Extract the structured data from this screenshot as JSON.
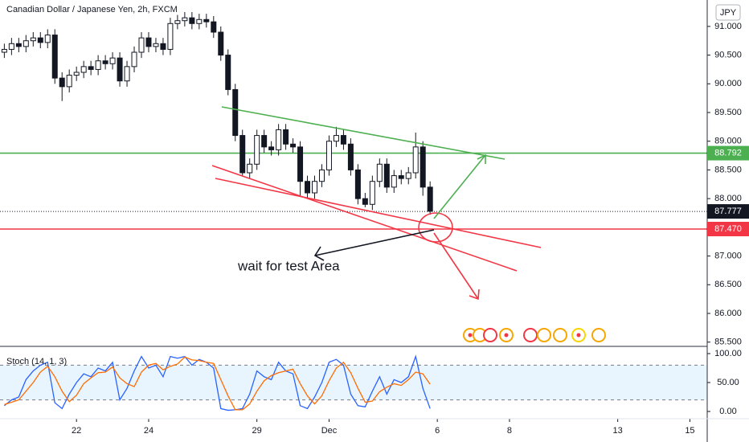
{
  "chart_data": [
    {
      "type": "candlestick",
      "title": "Canadian Dollar / Japanese Yen, 2h, FXCM",
      "currency": "JPY",
      "x": [
        -2.0,
        -1.8,
        -1.6,
        -1.4,
        -1.2,
        -1.0,
        -0.8,
        -0.6,
        -0.4,
        -0.2,
        0.0,
        0.2,
        0.4,
        0.6,
        0.8,
        1.0,
        1.2,
        1.4,
        1.6,
        1.8,
        2.0,
        2.2,
        2.4,
        2.6,
        2.8,
        3.0,
        3.2,
        3.4,
        3.6,
        3.8,
        4.0,
        4.2,
        4.4,
        4.6,
        4.8,
        5.0,
        5.2,
        5.4,
        5.6,
        5.8,
        6.0,
        6.2,
        6.4,
        6.6,
        6.8,
        7.0,
        7.2,
        7.4,
        7.6,
        7.8,
        8.0,
        8.2,
        8.4,
        8.6,
        8.8,
        9.0,
        9.2,
        9.4,
        9.6,
        9.8
      ],
      "open": [
        90.55,
        90.6,
        90.7,
        90.65,
        90.75,
        90.8,
        90.72,
        90.85,
        90.1,
        89.95,
        90.15,
        90.2,
        90.3,
        90.25,
        90.4,
        90.35,
        90.45,
        90.05,
        90.3,
        90.55,
        90.8,
        90.65,
        90.7,
        90.6,
        91.05,
        91.1,
        91.15,
        91.05,
        91.12,
        91.08,
        90.9,
        90.5,
        89.9,
        89.1,
        88.45,
        88.6,
        89.1,
        88.9,
        88.85,
        89.2,
        88.95,
        88.9,
        88.3,
        88.1,
        88.3,
        88.5,
        89.0,
        89.1,
        88.95,
        88.5,
        88.0,
        87.9,
        88.3,
        88.6,
        88.2,
        88.4,
        88.35,
        88.45,
        88.9,
        88.2
      ],
      "high": [
        90.7,
        90.8,
        90.8,
        90.85,
        90.9,
        90.9,
        90.95,
        90.95,
        90.2,
        90.25,
        90.3,
        90.4,
        90.4,
        90.5,
        90.5,
        90.55,
        90.55,
        90.4,
        90.65,
        90.9,
        90.9,
        90.8,
        90.8,
        91.15,
        91.2,
        91.25,
        91.25,
        91.22,
        91.22,
        91.18,
        91.0,
        90.6,
        90.0,
        89.2,
        88.7,
        89.2,
        89.2,
        89.0,
        89.3,
        89.3,
        89.05,
        89.0,
        88.4,
        88.4,
        88.6,
        89.1,
        89.25,
        89.2,
        89.05,
        88.6,
        88.1,
        88.4,
        88.7,
        88.7,
        88.5,
        88.5,
        88.55,
        89.15,
        89.0,
        88.3
      ],
      "low": [
        90.45,
        90.5,
        90.55,
        90.55,
        90.65,
        90.62,
        90.62,
        90.0,
        89.7,
        89.85,
        90.05,
        90.1,
        90.15,
        90.15,
        90.25,
        90.25,
        89.95,
        89.95,
        90.2,
        90.45,
        90.55,
        90.55,
        90.5,
        90.5,
        90.95,
        91.0,
        90.95,
        90.95,
        90.98,
        90.8,
        90.4,
        89.8,
        89.0,
        88.4,
        88.35,
        88.5,
        88.8,
        88.75,
        88.75,
        88.85,
        88.8,
        88.05,
        88.0,
        88.0,
        88.2,
        88.4,
        88.9,
        88.85,
        88.4,
        87.9,
        87.85,
        87.8,
        88.2,
        88.1,
        88.1,
        88.25,
        88.25,
        88.35,
        88.05,
        87.72
      ],
      "close": [
        90.6,
        90.7,
        90.65,
        90.75,
        90.8,
        90.72,
        90.85,
        90.1,
        89.95,
        90.15,
        90.2,
        90.3,
        90.25,
        90.4,
        90.35,
        90.45,
        90.05,
        90.3,
        90.55,
        90.8,
        90.65,
        90.7,
        90.6,
        91.05,
        91.1,
        91.15,
        91.05,
        91.12,
        91.08,
        90.9,
        90.5,
        89.9,
        89.1,
        88.45,
        88.6,
        89.1,
        88.9,
        88.85,
        89.2,
        88.95,
        88.9,
        88.3,
        88.1,
        88.3,
        88.5,
        89.0,
        89.1,
        88.95,
        88.5,
        88.0,
        87.9,
        88.3,
        88.6,
        88.2,
        88.4,
        88.35,
        88.45,
        88.9,
        88.2,
        87.78
      ],
      "up_color": "#ffffff",
      "down_color": "#131722",
      "xlim": [
        -2.12,
        17.48
      ],
      "xticks": [
        {
          "value": 0,
          "label": "22"
        },
        {
          "value": 2,
          "label": "24"
        },
        {
          "value": 5,
          "label": "29"
        },
        {
          "value": 7,
          "label": "Dec"
        },
        {
          "value": 10,
          "label": "6"
        },
        {
          "value": 12,
          "label": "8"
        },
        {
          "value": 15,
          "label": "13"
        },
        {
          "value": 17,
          "label": "15"
        }
      ],
      "ylim": [
        85.44,
        91.46
      ],
      "yticks": [
        {
          "value": 91,
          "label": "91.000"
        },
        {
          "value": 90.5,
          "label": "90.500"
        },
        {
          "value": 90,
          "label": "90.000"
        },
        {
          "value": 89.5,
          "label": "89.500"
        },
        {
          "value": 89,
          "label": "89.000"
        },
        {
          "value": 88.5,
          "label": "88.500"
        },
        {
          "value": 88,
          "label": "88.000"
        },
        {
          "value": 87.5,
          "label": "87.500"
        },
        {
          "value": 87,
          "label": "87.000"
        },
        {
          "value": 86.5,
          "label": "86.500"
        },
        {
          "value": 86,
          "label": "86.000"
        },
        {
          "value": 85.5,
          "label": "85.500"
        }
      ],
      "levels": {
        "values": [
          88.792,
          87.777,
          87.47
        ],
        "value_labels": [
          "88.792",
          "87.777",
          "87.470"
        ],
        "colors": [
          "#4caf50",
          "#131722",
          "#f23645"
        ],
        "styles": [
          "solid",
          "dotted",
          "solid"
        ]
      },
      "annotation": "wait for test Area"
    },
    {
      "type": "line",
      "title": "Stoch (14, 1, 3)",
      "x": [
        -2.0,
        -1.8,
        -1.6,
        -1.4,
        -1.2,
        -1.0,
        -0.8,
        -0.6,
        -0.4,
        -0.2,
        0.0,
        0.2,
        0.4,
        0.6,
        0.8,
        1.0,
        1.2,
        1.4,
        1.6,
        1.8,
        2.0,
        2.2,
        2.4,
        2.6,
        2.8,
        3.0,
        3.2,
        3.4,
        3.6,
        3.8,
        4.0,
        4.2,
        4.4,
        4.6,
        4.8,
        5.0,
        5.2,
        5.4,
        5.6,
        5.8,
        6.0,
        6.2,
        6.4,
        6.6,
        6.8,
        7.0,
        7.2,
        7.4,
        7.6,
        7.8,
        8.0,
        8.2,
        8.4,
        8.6,
        8.8,
        9.0,
        9.2,
        9.4,
        9.6,
        9.8
      ],
      "series": [
        {
          "color": "#2962ff",
          "values": [
            10,
            20,
            25,
            55,
            70,
            80,
            85,
            15,
            5,
            30,
            50,
            65,
            60,
            75,
            70,
            85,
            20,
            40,
            70,
            95,
            75,
            80,
            60,
            95,
            92,
            95,
            80,
            90,
            85,
            75,
            5,
            2,
            3,
            5,
            30,
            70,
            60,
            55,
            85,
            70,
            65,
            10,
            5,
            25,
            50,
            85,
            90,
            80,
            30,
            10,
            8,
            35,
            60,
            30,
            55,
            50,
            60,
            95,
            40,
            5
          ]
        },
        {
          "color": "#ff6d00",
          "values": [
            12,
            16,
            20,
            35,
            50,
            68,
            78,
            60,
            35,
            17,
            28,
            48,
            58,
            67,
            68,
            77,
            58,
            48,
            43,
            68,
            80,
            83,
            72,
            78,
            82,
            94,
            89,
            88,
            85,
            83,
            55,
            27,
            3,
            3,
            13,
            35,
            53,
            62,
            67,
            70,
            73,
            48,
            27,
            13,
            27,
            53,
            75,
            85,
            67,
            40,
            16,
            18,
            34,
            42,
            48,
            45,
            55,
            68,
            65,
            47
          ]
        }
      ],
      "band": [
        20,
        80
      ],
      "xlim": [
        -2.12,
        17.48
      ],
      "ylim": [
        -11.1,
        111.1
      ],
      "yticks": [
        {
          "value": 100,
          "label": "100.00"
        },
        {
          "value": 50,
          "label": "50.00"
        },
        {
          "value": 0,
          "label": "0.00"
        }
      ]
    }
  ]
}
